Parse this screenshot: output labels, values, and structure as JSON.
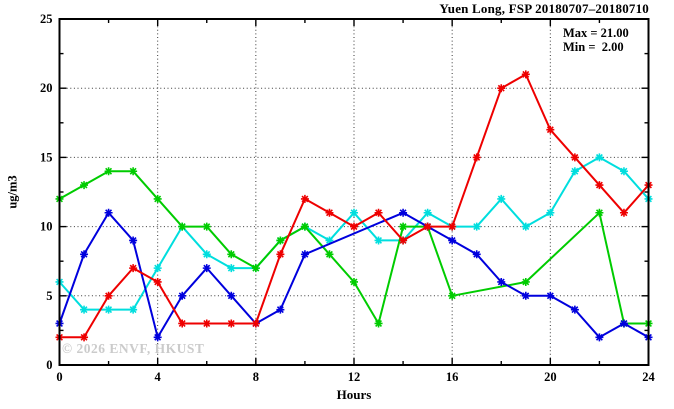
{
  "title": "Yuen Long, FSP 20180707–20180710",
  "annotations": {
    "max_line": "Max = 21.00",
    "min_line": "Min =  2.00"
  },
  "watermark": "© 2026 ENVF, HKUST",
  "chart_data": {
    "type": "line",
    "title": "Yuen Long, FSP 20180707–20180710",
    "xlabel": "Hours",
    "ylabel": "ug/m3",
    "xlim": [
      0,
      24
    ],
    "ylim": [
      0,
      25
    ],
    "x_ticks": [
      0,
      4,
      8,
      12,
      16,
      20,
      24
    ],
    "y_ticks": [
      0,
      5,
      10,
      15,
      20,
      25
    ],
    "x_minor_step": 2,
    "y_minor_step": 2.5,
    "grid": "dotted lines at major ticks, full border with inward ticks",
    "legend": "none",
    "max": 21.0,
    "min": 2.0,
    "x": [
      0,
      1,
      2,
      3,
      4,
      5,
      6,
      7,
      8,
      9,
      10,
      11,
      12,
      13,
      14,
      15,
      16,
      17,
      18,
      19,
      20,
      21,
      22,
      23,
      24
    ],
    "series": [
      {
        "name": "cyan",
        "color": "#00dede",
        "marker": "asterisk",
        "values": [
          6,
          4,
          4,
          4,
          7,
          10,
          8,
          7,
          7,
          9,
          10,
          9,
          11,
          9,
          9,
          11,
          10,
          10,
          12,
          10,
          11,
          14,
          15,
          14,
          12
        ]
      },
      {
        "name": "green",
        "color": "#00cc00",
        "marker": "asterisk",
        "values": [
          12,
          13,
          14,
          14,
          12,
          10,
          10,
          8,
          7,
          9,
          10,
          8,
          6,
          3,
          10,
          10,
          5,
          null,
          null,
          6,
          null,
          null,
          11,
          3,
          3
        ]
      },
      {
        "name": "blue",
        "color": "#0000dd",
        "marker": "asterisk",
        "values": [
          3,
          8,
          11,
          9,
          2,
          5,
          7,
          5,
          3,
          4,
          8,
          null,
          null,
          null,
          11,
          10,
          9,
          8,
          6,
          5,
          5,
          4,
          2,
          3,
          2
        ]
      },
      {
        "name": "red",
        "color": "#ee0000",
        "marker": "asterisk",
        "values": [
          2,
          2,
          5,
          7,
          6,
          3,
          3,
          3,
          3,
          8,
          12,
          11,
          10,
          11,
          9,
          10,
          10,
          15,
          20,
          21,
          17,
          15,
          13,
          11,
          13
        ]
      }
    ]
  }
}
